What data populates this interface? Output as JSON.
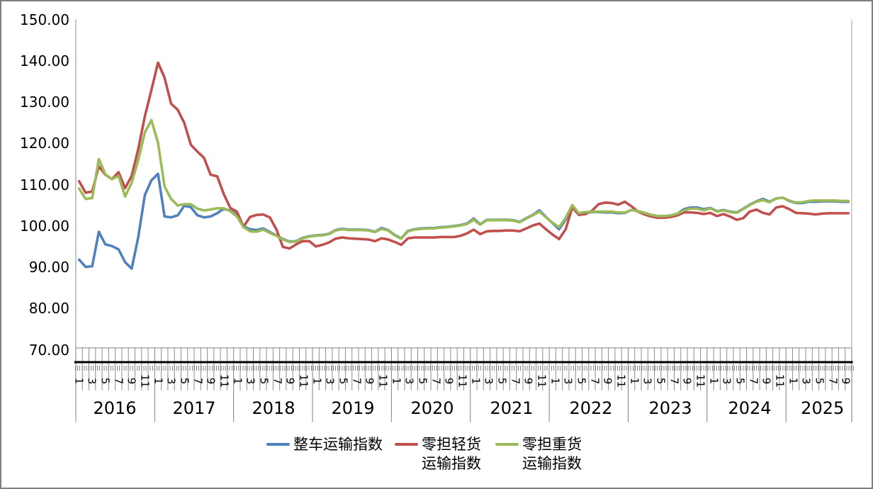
{
  "chart_data": {
    "type": "line",
    "title": "",
    "ylabel": "",
    "xlabel": "",
    "grid": "off",
    "legend_position": "bottom",
    "y_axis": {
      "min": 70,
      "max": 150,
      "step": 10,
      "tick_labels": [
        "150.00",
        "140.00",
        "130.00",
        "120.00",
        "110.00",
        "100.00",
        "90.00",
        "80.00",
        "70.00"
      ],
      "tick_values": [
        150,
        140,
        130,
        120,
        110,
        100,
        90,
        80,
        70
      ]
    },
    "x_axis": {
      "years": [
        {
          "label": "2016",
          "months": 12
        },
        {
          "label": "2017",
          "months": 12
        },
        {
          "label": "2018",
          "months": 12
        },
        {
          "label": "2019",
          "months": 12
        },
        {
          "label": "2020",
          "months": 12
        },
        {
          "label": "2021",
          "months": 12
        },
        {
          "label": "2022",
          "months": 12
        },
        {
          "label": "2023",
          "months": 12
        },
        {
          "label": "2024",
          "months": 12
        },
        {
          "label": "2025",
          "months": 10
        }
      ],
      "labeled_months": [
        1,
        3,
        5,
        7,
        9,
        11
      ]
    },
    "series": [
      {
        "name": "整车运输指数",
        "legend_lines": [
          "整车运输指数"
        ],
        "color": "#4F81BD",
        "values": [
          91.5,
          89.7,
          89.9,
          98.3,
          95.2,
          94.8,
          94.0,
          90.9,
          89.3,
          97.0,
          107.2,
          110.8,
          112.4,
          102.0,
          101.8,
          102.3,
          104.6,
          104.3,
          102.3,
          101.8,
          102.0,
          102.8,
          103.9,
          103.4,
          102.4,
          99.6,
          98.9,
          98.7,
          99.1,
          98.2,
          97.4,
          96.5,
          95.9,
          96.0,
          96.8,
          97.2,
          97.4,
          97.5,
          97.8,
          98.7,
          99.0,
          98.8,
          98.8,
          98.8,
          98.7,
          98.3,
          99.2,
          98.7,
          97.5,
          96.7,
          98.5,
          98.9,
          99.1,
          99.2,
          99.2,
          99.4,
          99.5,
          99.7,
          99.9,
          100.3,
          101.5,
          100.1,
          101.2,
          101.2,
          101.2,
          101.2,
          101.1,
          100.7,
          101.6,
          102.4,
          103.5,
          101.9,
          100.4,
          98.9,
          101.3,
          104.6,
          102.5,
          102.9,
          103.1,
          103.1,
          103.0,
          103.0,
          102.8,
          102.9,
          103.6,
          103.3,
          102.9,
          102.4,
          102.1,
          102.1,
          102.3,
          102.7,
          103.8,
          104.2,
          104.2,
          103.8,
          104.1,
          103.3,
          103.6,
          103.2,
          103.0,
          103.9,
          104.9,
          105.7,
          106.3,
          105.6,
          106.4,
          106.6,
          105.8,
          105.3,
          105.3,
          105.6,
          105.6,
          105.7,
          105.7,
          105.7,
          105.6,
          105.6
        ]
      },
      {
        "name": "零担轻货运输指数",
        "legend_lines": [
          "零担轻货",
          "运输指数"
        ],
        "color": "#C0504D",
        "values": [
          110.6,
          107.8,
          108.1,
          114.2,
          112.2,
          111.1,
          112.8,
          108.9,
          111.9,
          118.5,
          126.4,
          132.8,
          139.5,
          135.8,
          129.5,
          128.0,
          124.8,
          119.5,
          117.8,
          116.3,
          112.2,
          111.8,
          107.5,
          104.1,
          103.2,
          99.5,
          101.9,
          102.4,
          102.5,
          101.8,
          98.9,
          94.6,
          94.2,
          95.2,
          96.0,
          96.0,
          94.7,
          95.1,
          95.7,
          96.6,
          96.9,
          96.7,
          96.6,
          96.5,
          96.4,
          96.0,
          96.7,
          96.4,
          95.8,
          95.1,
          96.7,
          96.9,
          96.9,
          96.9,
          96.9,
          97.0,
          97.0,
          97.0,
          97.3,
          97.9,
          98.8,
          97.7,
          98.4,
          98.5,
          98.5,
          98.6,
          98.6,
          98.4,
          99.1,
          99.8,
          100.3,
          98.9,
          97.6,
          96.5,
          98.9,
          104.2,
          102.4,
          102.6,
          103.4,
          105.0,
          105.4,
          105.3,
          104.9,
          105.6,
          104.5,
          103.2,
          102.5,
          102.0,
          101.7,
          101.7,
          101.9,
          102.3,
          103.0,
          103.0,
          102.9,
          102.6,
          102.9,
          102.1,
          102.6,
          102.0,
          101.2,
          101.6,
          103.2,
          103.7,
          102.9,
          102.5,
          104.2,
          104.5,
          103.8,
          102.9,
          102.8,
          102.7,
          102.5,
          102.7,
          102.8,
          102.8,
          102.8,
          102.8
        ]
      },
      {
        "name": "零担重货运输指数",
        "legend_lines": [
          "零担重货",
          "运输指数"
        ],
        "color": "#9BBB59",
        "values": [
          108.8,
          106.3,
          106.5,
          116.0,
          112.3,
          111.1,
          111.9,
          106.9,
          110.2,
          115.8,
          122.5,
          125.5,
          120.0,
          109.3,
          106.3,
          104.7,
          105.0,
          105.0,
          103.9,
          103.5,
          103.7,
          104.0,
          104.0,
          103.3,
          102.0,
          99.4,
          98.4,
          98.3,
          98.8,
          98.0,
          97.3,
          96.4,
          95.8,
          95.9,
          96.7,
          97.1,
          97.3,
          97.4,
          97.7,
          98.6,
          98.9,
          98.7,
          98.7,
          98.7,
          98.6,
          98.2,
          99.0,
          98.6,
          97.4,
          96.6,
          98.4,
          98.8,
          99.0,
          99.1,
          99.1,
          99.3,
          99.4,
          99.6,
          99.8,
          100.2,
          101.2,
          100.0,
          101.1,
          101.1,
          101.1,
          101.1,
          101.0,
          100.6,
          101.5,
          102.3,
          103.2,
          101.8,
          100.5,
          99.4,
          101.7,
          104.8,
          102.8,
          103.1,
          103.2,
          103.2,
          103.2,
          103.2,
          103.0,
          103.0,
          103.6,
          103.3,
          102.9,
          102.4,
          102.1,
          102.1,
          102.3,
          102.7,
          103.5,
          103.9,
          103.9,
          103.5,
          104.0,
          103.2,
          103.5,
          103.1,
          102.9,
          103.8,
          104.8,
          105.6,
          106.0,
          105.5,
          106.4,
          106.6,
          105.9,
          105.4,
          105.5,
          105.8,
          105.9,
          105.9,
          105.9,
          105.9,
          105.8,
          105.8
        ]
      }
    ]
  }
}
